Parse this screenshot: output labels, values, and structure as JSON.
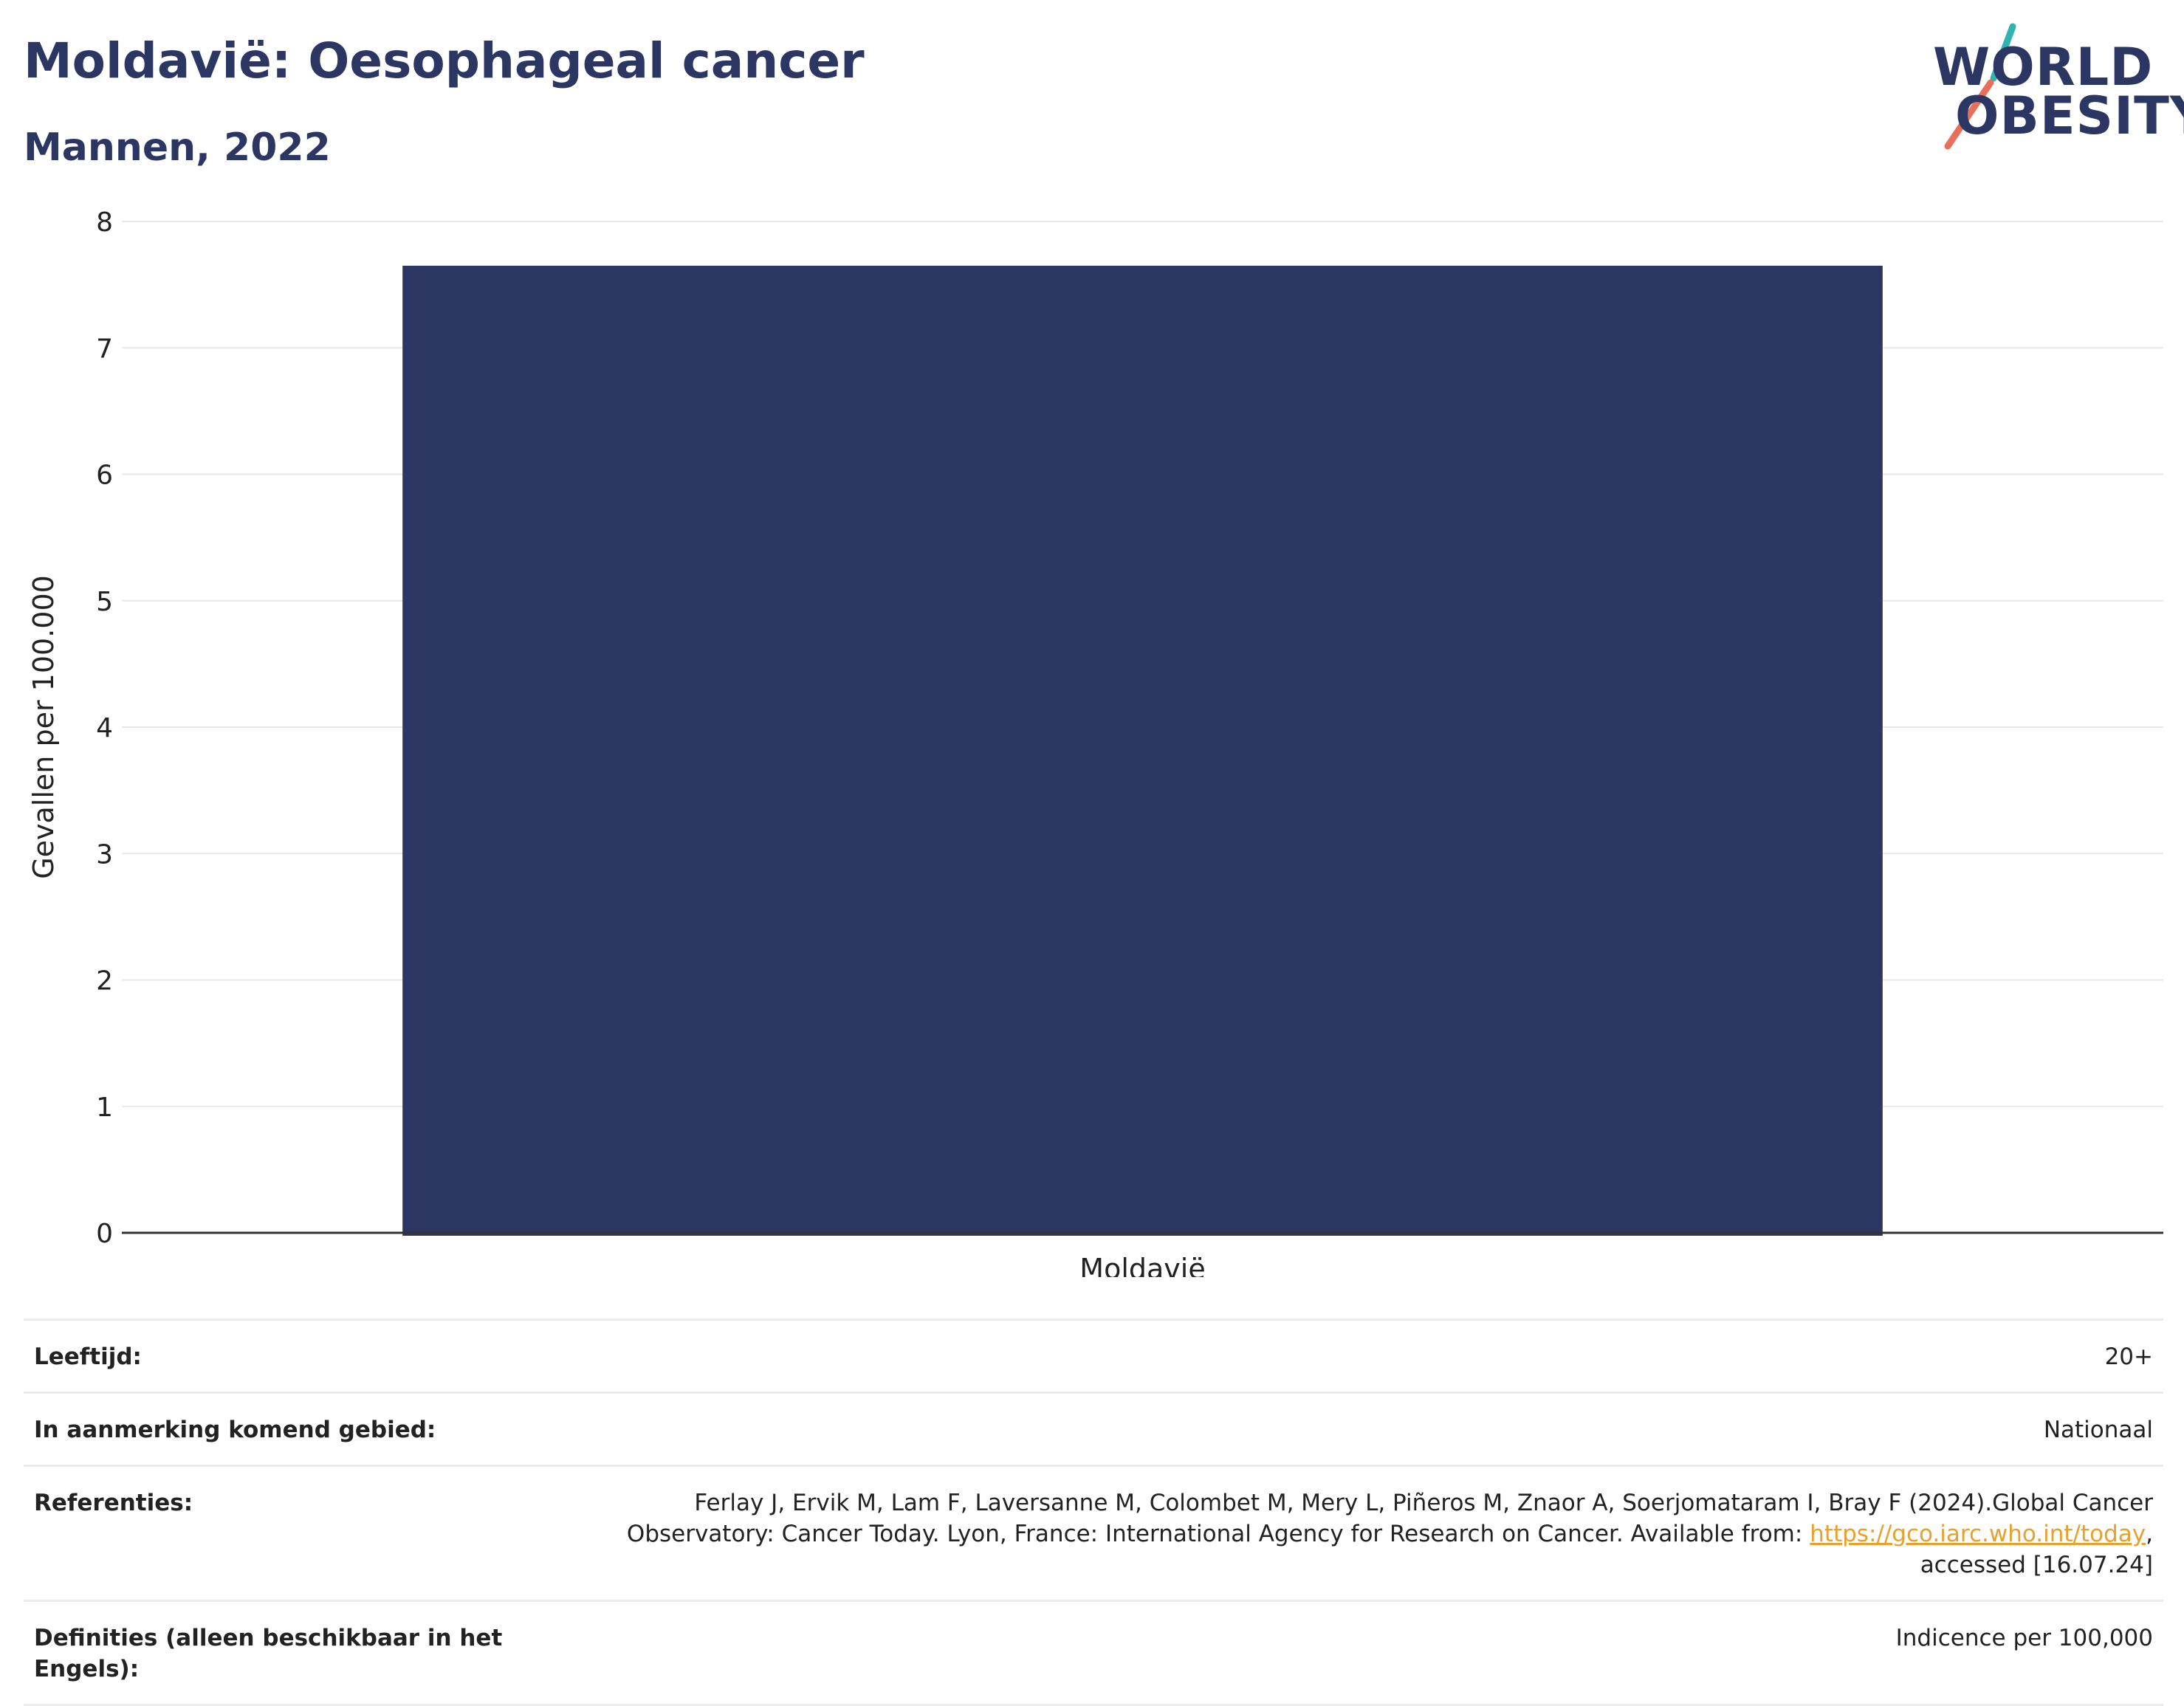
{
  "header": {
    "title": "Moldavië: Oesophageal cancer",
    "subtitle": "Mannen, 2022"
  },
  "logo": {
    "line1": "WORLD",
    "line2": "OBESITY",
    "slash_colors": [
      "#2fb4b0",
      "#e8705b"
    ]
  },
  "chart_data": {
    "type": "bar",
    "categories": [
      "Moldavië"
    ],
    "values": [
      7.65
    ],
    "ylabel": "Gevallen per 100.000",
    "xlabel": "",
    "ylim": [
      0,
      8
    ],
    "yticks": [
      "0",
      "1",
      "2",
      "3",
      "4",
      "5",
      "6",
      "7",
      "8"
    ],
    "bar_color": "#2b3663",
    "grid": true
  },
  "info": {
    "age_label": "Leeftijd:",
    "age_value": "20+",
    "area_label": "In aanmerking komend gebied:",
    "area_value": "Nationaal",
    "ref_label": "Referenties:",
    "ref_text_1": "Ferlay J, Ervik M, Lam F, Laversanne M, Colombet M, Mery L, Piñeros M, Znaor A, Soerjomataram I, Bray F (2024).Global Cancer Observatory: Cancer Today. Lyon, France: International Agency for Research on Cancer. Available from: ",
    "ref_link": "https://gco.iarc.who.int/today",
    "ref_text_2": ", accessed [16.07.24]",
    "def_label": "Definities (alleen beschikbaar in het Engels):",
    "def_value": "Indicence per 100,000"
  }
}
